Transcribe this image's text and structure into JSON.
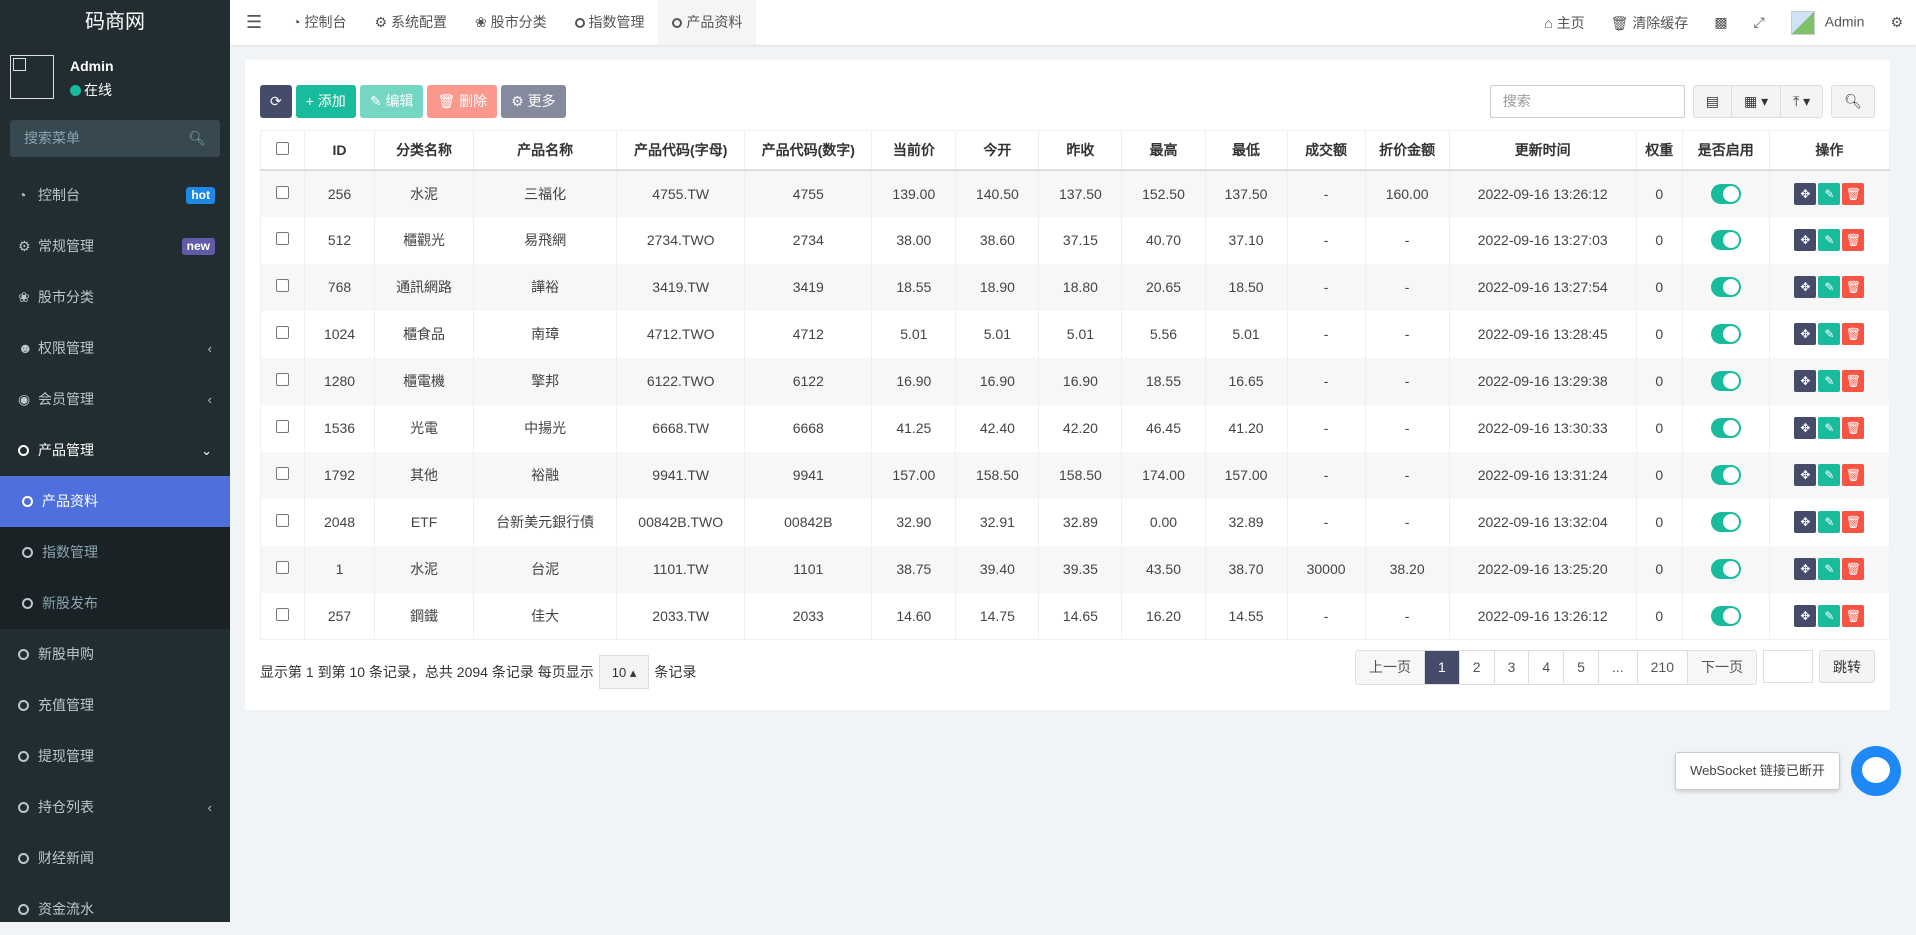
{
  "brand": "码商网",
  "user": {
    "name": "Admin",
    "status": "在线"
  },
  "sidebar": {
    "search_placeholder": "搜索菜单",
    "items": [
      {
        "label": "控制台",
        "icon": "dashboard-icon",
        "badge": "hot",
        "badge_color": "#1e88e5"
      },
      {
        "label": "常规管理",
        "icon": "cogs-icon",
        "badge": "new",
        "badge_color": "#605ca8"
      },
      {
        "label": "股市分类",
        "icon": "leaf-icon"
      },
      {
        "label": "权限管理",
        "icon": "users-icon",
        "caret": "‹"
      },
      {
        "label": "会员管理",
        "icon": "user-circle-icon",
        "caret": "‹"
      },
      {
        "label": "产品管理",
        "icon": "circle-icon",
        "caret": "⌄",
        "open": true
      }
    ],
    "subitems": [
      {
        "label": "产品资料",
        "active": true
      },
      {
        "label": "指数管理"
      },
      {
        "label": "新股发布"
      }
    ],
    "items_after": [
      {
        "label": "新股申购"
      },
      {
        "label": "充值管理"
      },
      {
        "label": "提现管理"
      },
      {
        "label": "持仓列表",
        "caret": "‹"
      },
      {
        "label": "财经新闻"
      },
      {
        "label": "资金流水"
      }
    ]
  },
  "topbar": {
    "tabs": [
      {
        "label": "控制台",
        "icon": "dashboard-icon"
      },
      {
        "label": "系统配置",
        "icon": "gear-icon"
      },
      {
        "label": "股市分类",
        "icon": "leaf-icon"
      },
      {
        "label": "指数管理",
        "icon": "circle-icon"
      },
      {
        "label": "产品资料",
        "icon": "circle-icon",
        "active": true
      }
    ],
    "home": "主页",
    "clear_cache": "清除缓存",
    "user": "Admin"
  },
  "toolbar": {
    "add": "添加",
    "edit": "编辑",
    "delete": "删除",
    "more": "更多",
    "search_placeholder": "搜索"
  },
  "table": {
    "columns": [
      "ID",
      "分类名称",
      "产品名称",
      "产品代码(字母)",
      "产品代码(数字)",
      "当前价",
      "今开",
      "昨收",
      "最高",
      "最低",
      "成交额",
      "折价金额",
      "更新时间",
      "权重",
      "是否启用",
      "操作"
    ],
    "rows": [
      [
        "256",
        "水泥",
        "三福化",
        "4755.TW",
        "4755",
        "139.00",
        "140.50",
        "137.50",
        "152.50",
        "137.50",
        "-",
        "160.00",
        "2022-09-16 13:26:12",
        "0"
      ],
      [
        "512",
        "櫃觀光",
        "易飛網",
        "2734.TWO",
        "2734",
        "38.00",
        "38.60",
        "37.15",
        "40.70",
        "37.10",
        "-",
        "-",
        "2022-09-16 13:27:03",
        "0"
      ],
      [
        "768",
        "通訊網路",
        "譁裕",
        "3419.TW",
        "3419",
        "18.55",
        "18.90",
        "18.80",
        "20.65",
        "18.50",
        "-",
        "-",
        "2022-09-16 13:27:54",
        "0"
      ],
      [
        "1024",
        "櫃食品",
        "南璋",
        "4712.TWO",
        "4712",
        "5.01",
        "5.01",
        "5.01",
        "5.56",
        "5.01",
        "-",
        "-",
        "2022-09-16 13:28:45",
        "0"
      ],
      [
        "1280",
        "櫃電機",
        "擎邦",
        "6122.TWO",
        "6122",
        "16.90",
        "16.90",
        "16.90",
        "18.55",
        "16.65",
        "-",
        "-",
        "2022-09-16 13:29:38",
        "0"
      ],
      [
        "1536",
        "光電",
        "中揚光",
        "6668.TW",
        "6668",
        "41.25",
        "42.40",
        "42.20",
        "46.45",
        "41.20",
        "-",
        "-",
        "2022-09-16 13:30:33",
        "0"
      ],
      [
        "1792",
        "其他",
        "裕融",
        "9941.TW",
        "9941",
        "157.00",
        "158.50",
        "158.50",
        "174.00",
        "157.00",
        "-",
        "-",
        "2022-09-16 13:31:24",
        "0"
      ],
      [
        "2048",
        "ETF",
        "台新美元銀行債",
        "00842B.TWO",
        "00842B",
        "32.90",
        "32.91",
        "32.89",
        "0.00",
        "32.89",
        "-",
        "-",
        "2022-09-16 13:32:04",
        "0"
      ],
      [
        "1",
        "水泥",
        "台泥",
        "1101.TW",
        "1101",
        "38.75",
        "39.40",
        "39.35",
        "43.50",
        "38.70",
        "30000",
        "38.20",
        "2022-09-16 13:25:20",
        "0"
      ],
      [
        "257",
        "鋼鐵",
        "佳大",
        "2033.TW",
        "2033",
        "14.60",
        "14.75",
        "14.65",
        "16.20",
        "14.55",
        "-",
        "-",
        "2022-09-16 13:26:12",
        "0"
      ]
    ],
    "enabled": [
      true,
      true,
      true,
      true,
      true,
      true,
      true,
      true,
      true,
      true
    ]
  },
  "footer": {
    "info": "显示第 1 到第 10 条记录，总共 2094 条记录 每页显示",
    "page_size": "10",
    "suffix": "条记录"
  },
  "pagination": {
    "prev": "上一页",
    "pages": [
      "1",
      "2",
      "3",
      "4",
      "5",
      "...",
      "210"
    ],
    "active": "1",
    "next": "下一页",
    "jump": "跳转"
  },
  "toast": "WebSocket 链接已断开",
  "colors": {
    "primary": "#444c69",
    "success": "#18bc9c",
    "danger": "#f75444",
    "active_menu": "#4e6fdc"
  }
}
